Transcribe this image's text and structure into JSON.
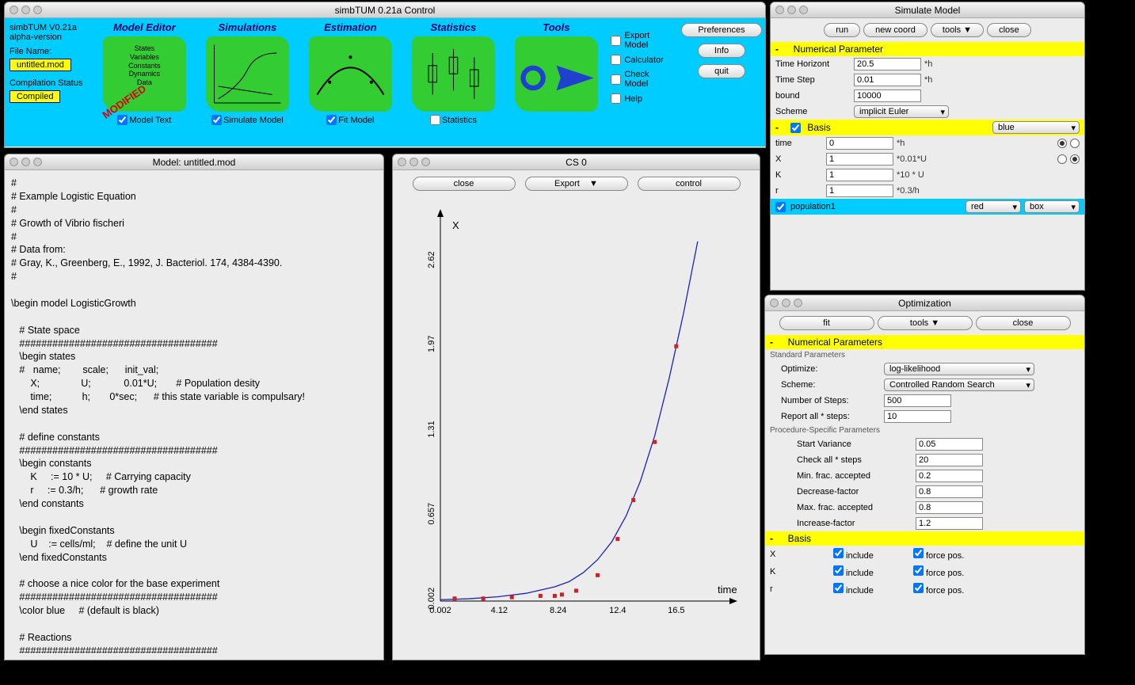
{
  "control": {
    "title": "simbTUM 0.21a  Control",
    "version_line1": "simbTUM V0.21a",
    "version_line2": "alpha-version",
    "filename_label": "File Name:",
    "filename": "untitled.mod",
    "comp_label": "Compilation Status",
    "comp_status": "Compiled",
    "modules": [
      {
        "title": "Model Editor",
        "sub": "States\\nVariables\\nConstants\\nDynamics\\nData",
        "cb": "Model Text",
        "checked": true,
        "stamp": "MODIFIED"
      },
      {
        "title": "Simulations",
        "cb": "Simulate Model",
        "checked": true
      },
      {
        "title": "Estimation",
        "cb": "Fit Model",
        "checked": true
      },
      {
        "title": "Statistics",
        "cb": "Statistics",
        "checked": false
      },
      {
        "title": "Tools",
        "cb": "",
        "checked": false
      }
    ],
    "right_cbs": [
      "Export Model",
      "Calculator",
      "Check Model",
      "Help"
    ],
    "right_btns": [
      "Preferences",
      "Info",
      "quit"
    ]
  },
  "model": {
    "title": "Model: untitled.mod",
    "text": "#\n# Example Logistic Equation\n#\n# Growth of Vibrio fischeri\n#\n# Data from:\n# Gray, K., Greenberg, E., 1992, J. Bacteriol. 174, 4384-4390.\n#\n\n\\begin model LogisticGrowth\n\n   # State space\n   ####################################\n   \\begin states\n   #   name;        scale;      init_val;\n       X;               U;            0.01*U;       # Population desity\n       time;           h;       0*sec;      # this state variable is compulsary!\n   \\end states\n\n   # define constants\n   ####################################\n   \\begin constants\n       K     := 10 * U;     # Carrying capacity\n       r     := 0.3/h;      # growth rate\n   \\end constants\n\n   \\begin fixedConstants\n       U    := cells/ml;    # define the unit U\n   \\end fixedConstants\n\n   # choose a nice color for the base experiment\n   ####################################\n   \\color blue     # (default is black)\n\n   # Reactions\n   ####################################\n   \\begin addTerm\n       # this is the way how to implement the logistic growth"
  },
  "cs0": {
    "title": "CS 0",
    "btns": [
      "close",
      "Export",
      "control"
    ],
    "chart": {
      "type": "scatter+line",
      "xlabel": "time",
      "ylabel": "X",
      "xlim": [
        0,
        20.5
      ],
      "ylim": [
        0,
        3.0
      ],
      "xticks": [
        0.002,
        4.12,
        8.24,
        12.4,
        16.5
      ],
      "yticks": [
        0.002,
        0.657,
        1.31,
        1.97,
        2.62
      ],
      "line_color": "#2020c0",
      "point_color": "#cc2222",
      "point_size": 5,
      "scatter": [
        [
          1.0,
          0.02
        ],
        [
          3.0,
          0.02
        ],
        [
          5.0,
          0.03
        ],
        [
          7.0,
          0.04
        ],
        [
          8.0,
          0.04
        ],
        [
          8.5,
          0.05
        ],
        [
          9.5,
          0.08
        ],
        [
          11.0,
          0.2
        ],
        [
          12.4,
          0.48
        ],
        [
          13.5,
          0.78
        ],
        [
          15.0,
          1.23
        ],
        [
          16.5,
          1.97
        ]
      ],
      "curve": [
        [
          0,
          0.01
        ],
        [
          2,
          0.018
        ],
        [
          4,
          0.033
        ],
        [
          6,
          0.06
        ],
        [
          8,
          0.11
        ],
        [
          9,
          0.15
        ],
        [
          10,
          0.22
        ],
        [
          11,
          0.32
        ],
        [
          12,
          0.46
        ],
        [
          13,
          0.66
        ],
        [
          14,
          0.93
        ],
        [
          15,
          1.28
        ],
        [
          16,
          1.72
        ],
        [
          17,
          2.22
        ],
        [
          17.5,
          2.5
        ],
        [
          18,
          2.78
        ]
      ]
    }
  },
  "sim": {
    "title": "Simulate Model",
    "btns": [
      "run",
      "new coord",
      "tools  ▼",
      "close"
    ],
    "section1": "Numerical Parameter",
    "params": [
      {
        "k": "Time Horizont",
        "v": "20.5",
        "u": "*h"
      },
      {
        "k": "Time Step",
        "v": "0.01",
        "u": "*h"
      },
      {
        "k": "bound",
        "v": "10000",
        "u": ""
      }
    ],
    "scheme_label": "Scheme",
    "scheme_value": "implicit Euler",
    "section2": "Basis",
    "basis_color": "blue",
    "basis": [
      {
        "k": "time",
        "v": "0",
        "u": "*h",
        "r": [
          true,
          false
        ]
      },
      {
        "k": "X",
        "v": "1",
        "u": "*0.01*U",
        "r": [
          false,
          true
        ]
      },
      {
        "k": "K",
        "v": "1",
        "u": "*10 * U"
      },
      {
        "k": "r",
        "v": "1",
        "u": "*0.3/h"
      }
    ],
    "pop_label": "population1",
    "pop_color": "red",
    "pop_style": "box"
  },
  "opt": {
    "title": "Optimization",
    "btns": [
      "fit",
      "tools            ▼",
      "close"
    ],
    "section1": "Numerical Parameters",
    "std_label": "Standard Parameters",
    "optimize_label": "Optimize:",
    "optimize_value": "log-likelihood",
    "scheme_label": "Scheme:",
    "scheme_value": "Controlled Random Search",
    "nsteps_label": "Number of Steps:",
    "nsteps_value": "500",
    "report_label": "Report all * steps:",
    "report_value": "10",
    "proc_label": "Procedure-Specific Parameters",
    "proc": [
      {
        "k": "Start Variance",
        "v": "0.05"
      },
      {
        "k": "Check all * steps",
        "v": "20"
      },
      {
        "k": "Min. frac. accepted",
        "v": "0.2"
      },
      {
        "k": "Decrease-factor",
        "v": "0.8"
      },
      {
        "k": "Max. frac. accepted",
        "v": "0.8"
      },
      {
        "k": "Increase-factor",
        "v": "1.2"
      }
    ],
    "section2": "Basis",
    "inc_label": "include",
    "force_label": "force pos.",
    "inc_rows": [
      "X",
      "K",
      "r"
    ]
  }
}
